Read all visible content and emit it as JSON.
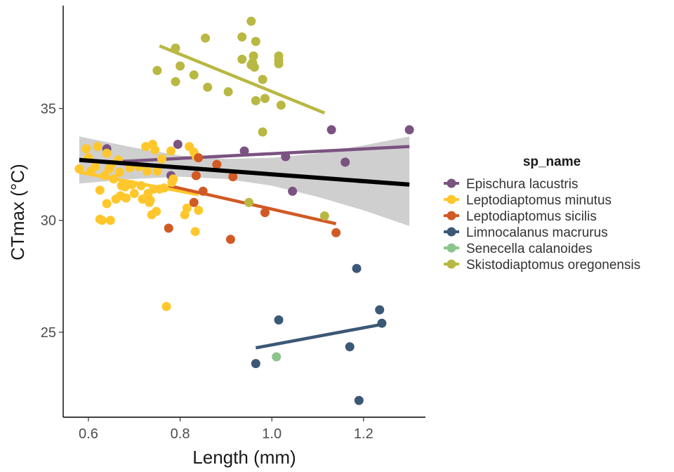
{
  "chart_data": {
    "type": "scatter",
    "xlabel": "Length (mm)",
    "ylabel": "CTmax (°C)",
    "xlim": [
      0.545,
      1.335
    ],
    "ylim": [
      21.2,
      39.6
    ],
    "x_ticks": [
      0.6,
      0.8,
      1.0,
      1.2
    ],
    "x_tick_labels": [
      "0.6",
      "0.8",
      "1.0",
      "1.2"
    ],
    "y_ticks": [
      25,
      30,
      35
    ],
    "y_tick_labels": [
      "25",
      "30",
      "35"
    ],
    "grid": false,
    "legend": {
      "title": "sp_name",
      "placement": "right",
      "entries": [
        "Epischura lacustris",
        "Leptodiaptomus minutus",
        "Leptodiaptomus sicilis",
        "Limnocalanus macrurus",
        "Senecella calanoides",
        "Skistodiaptomus oregonensis"
      ]
    },
    "series": [
      {
        "name": "Epischura lacustris",
        "color": "#7a5380",
        "points": [
          [
            0.64,
            33.2
          ],
          [
            0.78,
            32.0
          ],
          [
            0.795,
            33.4
          ],
          [
            0.94,
            33.1
          ],
          [
            1.03,
            32.85
          ],
          [
            1.045,
            31.3
          ],
          [
            1.13,
            34.05
          ],
          [
            1.16,
            32.6
          ],
          [
            1.3,
            34.05
          ]
        ],
        "fit": [
          [
            0.64,
            32.6
          ],
          [
            1.3,
            33.3
          ]
        ]
      },
      {
        "name": "Leptodiaptomus minutus",
        "color": "#ffc72c",
        "points": [
          [
            0.58,
            32.3
          ],
          [
            0.595,
            33.2
          ],
          [
            0.6,
            32.8
          ],
          [
            0.605,
            32.2
          ],
          [
            0.615,
            32.4
          ],
          [
            0.62,
            33.3
          ],
          [
            0.625,
            31.35
          ],
          [
            0.625,
            30.05
          ],
          [
            0.63,
            30.0
          ],
          [
            0.635,
            32.0
          ],
          [
            0.64,
            33.0
          ],
          [
            0.64,
            30.75
          ],
          [
            0.645,
            32.3
          ],
          [
            0.648,
            30.0
          ],
          [
            0.65,
            32.5
          ],
          [
            0.655,
            31.85
          ],
          [
            0.66,
            30.95
          ],
          [
            0.665,
            32.7
          ],
          [
            0.668,
            32.15
          ],
          [
            0.67,
            31.1
          ],
          [
            0.672,
            31.55
          ],
          [
            0.68,
            31.5
          ],
          [
            0.682,
            31.0
          ],
          [
            0.69,
            32.35
          ],
          [
            0.695,
            31.6
          ],
          [
            0.7,
            31.2
          ],
          [
            0.71,
            32.4
          ],
          [
            0.715,
            31.55
          ],
          [
            0.718,
            30.95
          ],
          [
            0.725,
            33.3
          ],
          [
            0.728,
            32.2
          ],
          [
            0.73,
            31.2
          ],
          [
            0.733,
            30.8
          ],
          [
            0.735,
            30.9
          ],
          [
            0.738,
            30.25
          ],
          [
            0.74,
            33.4
          ],
          [
            0.742,
            31.4
          ],
          [
            0.745,
            33.15
          ],
          [
            0.748,
            30.4
          ],
          [
            0.75,
            32.2
          ],
          [
            0.755,
            31.4
          ],
          [
            0.76,
            32.75
          ],
          [
            0.765,
            31.45
          ],
          [
            0.77,
            26.15
          ],
          [
            0.78,
            33.1
          ],
          [
            0.782,
            31.7
          ],
          [
            0.785,
            31.85
          ],
          [
            0.81,
            30.25
          ],
          [
            0.815,
            30.55
          ],
          [
            0.82,
            33.3
          ],
          [
            0.83,
            33.05
          ],
          [
            0.833,
            29.5
          ],
          [
            0.835,
            32.85
          ],
          [
            0.84,
            30.45
          ]
        ],
        "fit": [
          [
            0.58,
            32.15
          ],
          [
            0.84,
            31.15
          ]
        ]
      },
      {
        "name": "Leptodiaptomus sicilis",
        "color": "#d15a24",
        "points": [
          [
            0.775,
            29.65
          ],
          [
            0.83,
            30.8
          ],
          [
            0.835,
            32.0
          ],
          [
            0.84,
            32.8
          ],
          [
            0.85,
            31.3
          ],
          [
            0.88,
            32.5
          ],
          [
            0.91,
            29.15
          ],
          [
            0.915,
            31.95
          ],
          [
            0.985,
            30.35
          ],
          [
            1.14,
            29.45
          ]
        ],
        "fit": [
          [
            0.775,
            31.55
          ],
          [
            1.14,
            29.85
          ]
        ]
      },
      {
        "name": "Limnocalanus macrurus",
        "color": "#3b5876",
        "points": [
          [
            0.965,
            23.6
          ],
          [
            1.015,
            25.55
          ],
          [
            1.17,
            24.35
          ],
          [
            1.185,
            27.85
          ],
          [
            1.19,
            21.95
          ],
          [
            1.235,
            26.0
          ],
          [
            1.24,
            25.4
          ]
        ],
        "fit": [
          [
            0.965,
            24.3
          ],
          [
            1.24,
            25.35
          ]
        ]
      },
      {
        "name": "Senecella calanoides",
        "color": "#8cc58c",
        "points": [
          [
            1.01,
            23.9
          ]
        ],
        "fit": []
      },
      {
        "name": "Skistodiaptomus oregonensis",
        "color": "#b8b843",
        "points": [
          [
            0.75,
            36.7
          ],
          [
            0.79,
            37.7
          ],
          [
            0.79,
            36.2
          ],
          [
            0.8,
            36.9
          ],
          [
            0.83,
            36.5
          ],
          [
            0.855,
            38.15
          ],
          [
            0.86,
            35.95
          ],
          [
            0.905,
            35.75
          ],
          [
            0.935,
            37.2
          ],
          [
            0.935,
            38.2
          ],
          [
            0.955,
            38.9
          ],
          [
            0.955,
            36.95
          ],
          [
            0.958,
            37.05
          ],
          [
            0.96,
            37.35
          ],
          [
            0.962,
            36.85
          ],
          [
            0.965,
            38.0
          ],
          [
            0.965,
            35.35
          ],
          [
            0.98,
            36.3
          ],
          [
            0.98,
            33.95
          ],
          [
            0.985,
            35.45
          ],
          [
            1.015,
            37.35
          ],
          [
            1.015,
            37.15
          ],
          [
            1.015,
            37.0
          ],
          [
            1.02,
            35.15
          ],
          [
            1.115,
            30.2
          ],
          [
            0.95,
            30.8
          ]
        ],
        "fit": [
          [
            0.755,
            37.8
          ],
          [
            1.115,
            34.8
          ]
        ]
      }
    ],
    "overall_fit": {
      "color": "#000000",
      "ribbon_color": "#cccccc",
      "line": [
        [
          0.58,
          32.7
        ],
        [
          1.3,
          31.6
        ]
      ],
      "ribbon_upper": [
        [
          0.58,
          33.75
        ],
        [
          0.7,
          33.25
        ],
        [
          0.8,
          32.9
        ],
        [
          0.9,
          32.75
        ],
        [
          1.0,
          32.8
        ],
        [
          1.1,
          33.0
        ],
        [
          1.2,
          33.35
        ],
        [
          1.3,
          33.75
        ]
      ],
      "ribbon_lower": [
        [
          0.58,
          31.65
        ],
        [
          0.7,
          31.85
        ],
        [
          0.8,
          31.95
        ],
        [
          0.9,
          31.85
        ],
        [
          1.0,
          31.55
        ],
        [
          1.1,
          31.05
        ],
        [
          1.2,
          30.45
        ],
        [
          1.3,
          29.75
        ]
      ]
    }
  }
}
